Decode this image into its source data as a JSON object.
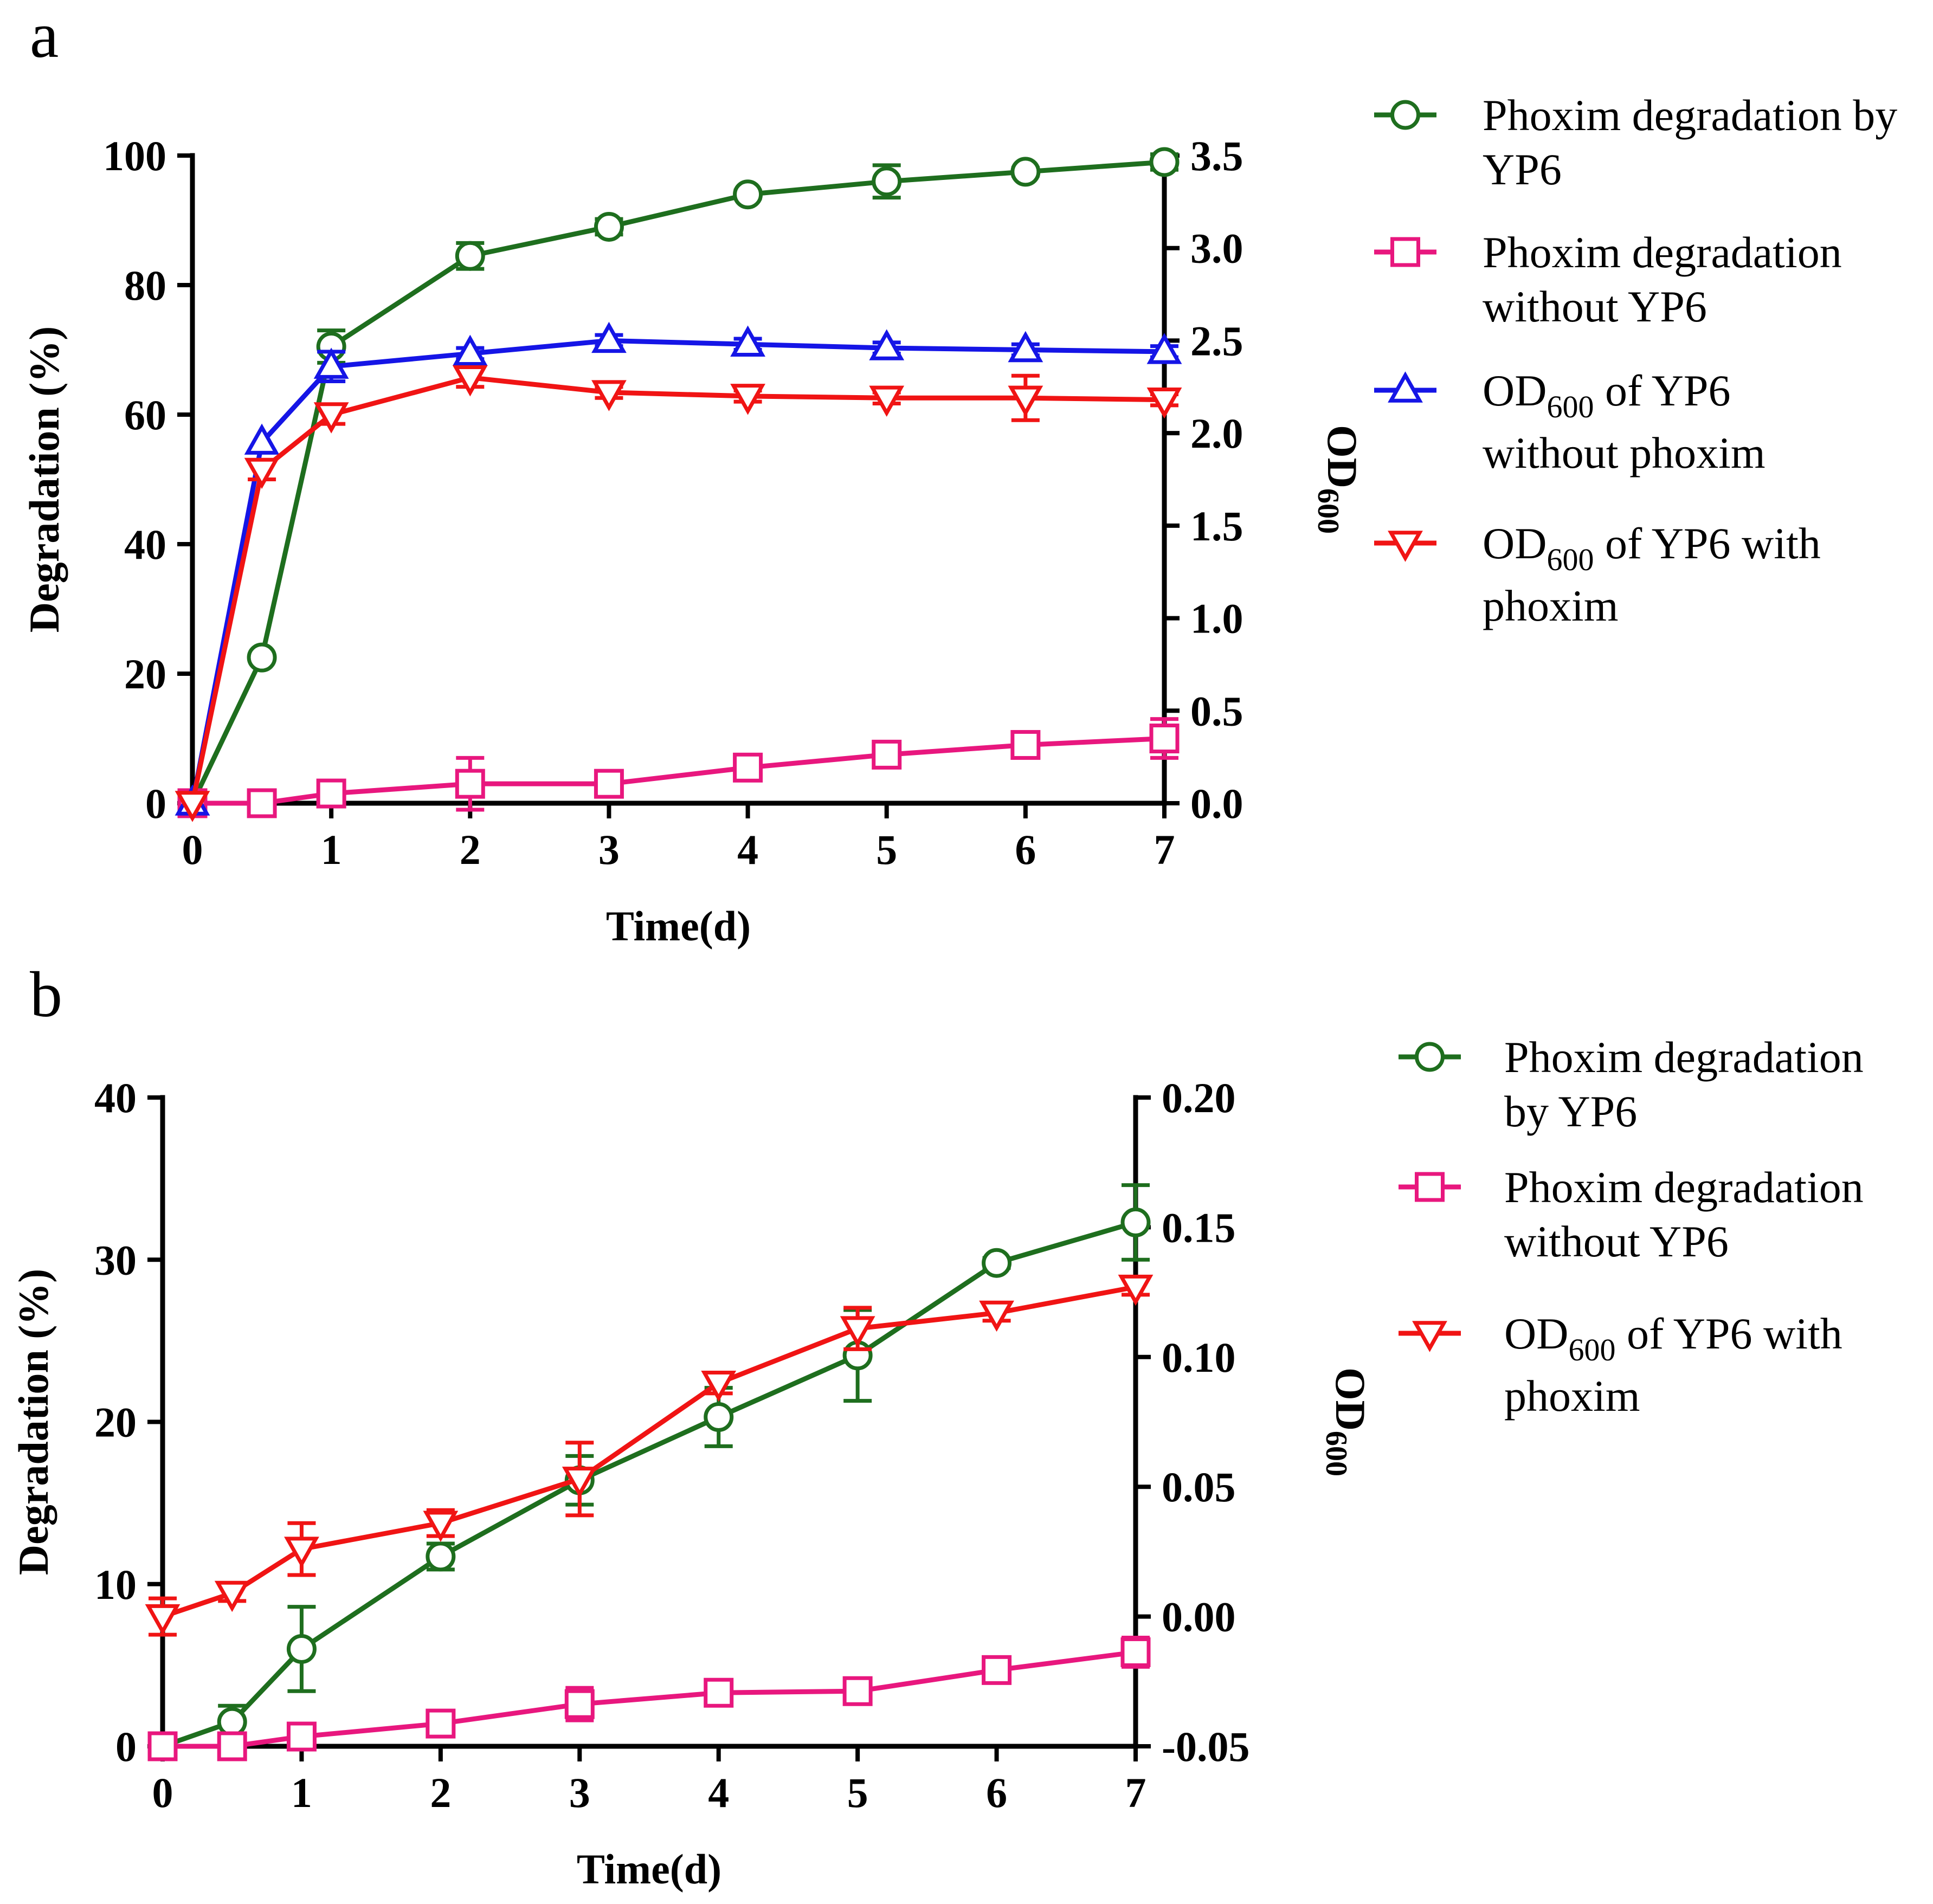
{
  "chart_data": [
    {
      "panel": "a",
      "type": "line",
      "xlabel": "Time(d)",
      "ylabel": "Degradation (%)",
      "y2label": "OD",
      "y2label_sub": "600",
      "x_ticks": [
        "0",
        "1",
        "2",
        "3",
        "4",
        "5",
        "6",
        "7"
      ],
      "ylim": [
        0,
        100
      ],
      "y_ticks": [
        "0",
        "20",
        "40",
        "60",
        "80",
        "100"
      ],
      "y2lim": [
        0,
        3.5
      ],
      "y2_ticks": [
        "0.0",
        "0.5",
        "1.0",
        "1.5",
        "2.0",
        "2.5",
        "3.0",
        "3.5"
      ],
      "legend_position": "right",
      "series": [
        {
          "name_lines": [
            "Phoxim degradation by",
            "YP6"
          ],
          "axis": "left",
          "color": "#1e6e1e",
          "marker": "circle",
          "x": [
            0,
            0.5,
            1,
            2,
            3,
            4,
            5,
            6,
            7
          ],
          "y": [
            0,
            22.5,
            70.5,
            84.5,
            89,
            94,
            96,
            97.5,
            99
          ],
          "err": [
            0,
            0,
            2.5,
            2,
            1.2,
            0.6,
            2.5,
            0.6,
            1.2
          ]
        },
        {
          "name_lines": [
            "Phoxim degradation",
            "without YP6"
          ],
          "axis": "left",
          "color": "#e8177e",
          "marker": "square",
          "x": [
            0,
            0.5,
            1,
            2,
            3,
            4,
            5,
            6,
            7
          ],
          "y": [
            0,
            0,
            1.5,
            3,
            3,
            5.5,
            7.5,
            9,
            10
          ],
          "err": [
            0,
            0,
            0.5,
            4,
            1.5,
            0.5,
            1.5,
            1.5,
            3
          ]
        },
        {
          "name_pre": "OD",
          "name_sub": "600",
          "name_post": " of YP6",
          "name_second": "without phoxim",
          "axis": "right",
          "color": "#1515e6",
          "marker": "triangle-up",
          "x": [
            0,
            0.5,
            1,
            2,
            3,
            4,
            5,
            6,
            7
          ],
          "y": [
            0,
            1.95,
            2.36,
            2.43,
            2.5,
            2.48,
            2.46,
            2.45,
            2.44
          ],
          "err": [
            0,
            0,
            0.08,
            0.03,
            0.03,
            0.03,
            0.03,
            0.03,
            0.03
          ]
        },
        {
          "name_pre": "OD",
          "name_sub": "600",
          "name_post": " of YP6 with",
          "name_second": "phoxim",
          "axis": "right",
          "color": "#f01414",
          "marker": "triangle-down",
          "x": [
            0,
            0.5,
            1,
            2,
            3,
            4,
            5,
            6,
            7
          ],
          "y": [
            0,
            1.8,
            2.1,
            2.3,
            2.22,
            2.2,
            2.19,
            2.19,
            2.18
          ],
          "err": [
            0,
            0.05,
            0.05,
            0.05,
            0.03,
            0.03,
            0.03,
            0.12,
            0.03
          ]
        }
      ]
    },
    {
      "panel": "b",
      "type": "line",
      "xlabel": "Time(d)",
      "ylabel": "Degradation (%)",
      "y2label": "OD",
      "y2label_sub": "600",
      "x_ticks": [
        "0",
        "1",
        "2",
        "3",
        "4",
        "5",
        "6",
        "7"
      ],
      "ylim": [
        0,
        40
      ],
      "y_ticks": [
        "0",
        "10",
        "20",
        "30",
        "40"
      ],
      "y2lim": [
        -0.05,
        0.2
      ],
      "y2_ticks": [
        "-0.05",
        "0.00",
        "0.05",
        "0.10",
        "0.15",
        "0.20"
      ],
      "legend_position": "right",
      "series": [
        {
          "name_lines": [
            "Phoxim degradation",
            "by YP6"
          ],
          "axis": "left",
          "color": "#1e6e1e",
          "marker": "circle",
          "x": [
            0,
            0.5,
            1,
            2,
            3,
            4,
            5,
            6,
            7
          ],
          "y": [
            0,
            1.5,
            6,
            11.7,
            16.4,
            20.3,
            24.1,
            29.8,
            32.3
          ],
          "err": [
            0,
            1,
            2.6,
            0.8,
            1.5,
            1.8,
            2.8,
            0.3,
            2.3
          ]
        },
        {
          "name_lines": [
            "Phoxim degradation",
            "without YP6"
          ],
          "axis": "left",
          "color": "#e8177e",
          "marker": "square",
          "x": [
            0,
            0.5,
            1,
            2,
            3,
            4,
            5,
            6,
            7
          ],
          "y": [
            0,
            0,
            0.6,
            1.4,
            2.6,
            3.3,
            3.4,
            4.7,
            5.8
          ],
          "err": [
            0,
            0,
            0.3,
            0.6,
            1,
            0.3,
            0.4,
            0.3,
            0.9
          ]
        },
        {
          "name_pre": "OD",
          "name_sub": "600",
          "name_post": " of YP6 with",
          "name_second": "phoxim",
          "axis": "right",
          "color": "#f01414",
          "marker": "triangle-down",
          "x": [
            0,
            0.5,
            1,
            2,
            3,
            4,
            5,
            6,
            7
          ],
          "y": [
            0.0,
            0.009,
            0.026,
            0.036,
            0.053,
            0.09,
            0.111,
            0.117,
            0.127
          ],
          "err": [
            0.007,
            0.003,
            0.01,
            0.005,
            0.014,
            0.004,
            0.008,
            0.003,
            0.003
          ]
        }
      ]
    }
  ]
}
